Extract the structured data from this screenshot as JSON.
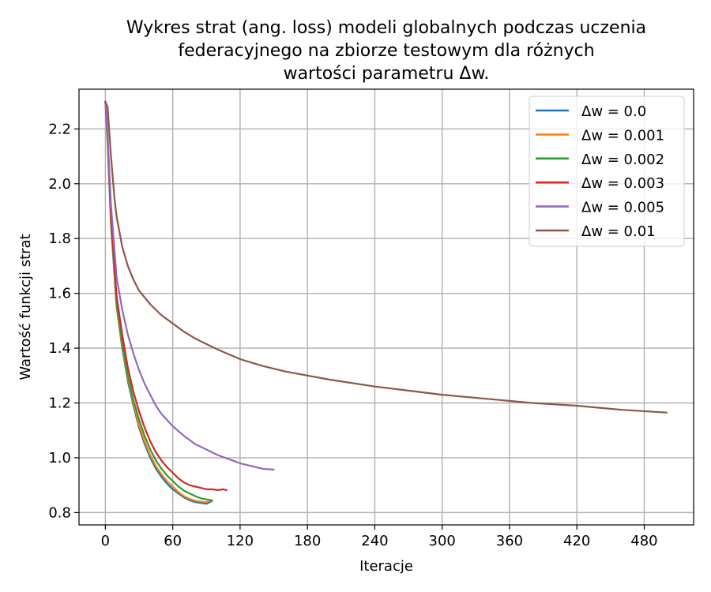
{
  "chart_data": {
    "type": "line",
    "title_lines": [
      "Wykres strat (ang. loss) modeli globalnych podczas uczenia",
      "federacyjnego na zbiorze testowym dla różnych",
      "wartości parametru Δw."
    ],
    "xlabel": "Iteracje",
    "ylabel": "Wartość funkcji strat",
    "xlim": [
      -23.5,
      524
    ],
    "ylim": [
      0.755,
      2.345
    ],
    "xticks": [
      0,
      60,
      120,
      180,
      240,
      300,
      360,
      420,
      480
    ],
    "yticks": [
      0.8,
      1.0,
      1.2,
      1.4,
      1.6,
      1.8,
      2.0,
      2.2
    ],
    "grid": true,
    "legend_position": "top-right",
    "series": [
      {
        "name": "Δw = 0.0",
        "color": "#1f77b4",
        "x": [
          0,
          2,
          5,
          10,
          15,
          20,
          25,
          30,
          35,
          40,
          45,
          50,
          55,
          60,
          65,
          70,
          75,
          80,
          85,
          90,
          95
        ],
        "y": [
          2.3,
          2.15,
          1.85,
          1.55,
          1.4,
          1.28,
          1.19,
          1.11,
          1.05,
          1.0,
          0.96,
          0.93,
          0.905,
          0.885,
          0.87,
          0.855,
          0.845,
          0.838,
          0.835,
          0.832,
          0.842
        ]
      },
      {
        "name": "Δw = 0.001",
        "color": "#ff7f0e",
        "x": [
          0,
          2,
          5,
          10,
          15,
          20,
          25,
          30,
          35,
          40,
          45,
          50,
          55,
          60,
          65,
          70,
          75,
          80,
          85,
          90,
          95
        ],
        "y": [
          2.3,
          2.16,
          1.86,
          1.56,
          1.41,
          1.29,
          1.2,
          1.12,
          1.06,
          1.01,
          0.97,
          0.94,
          0.915,
          0.895,
          0.875,
          0.86,
          0.85,
          0.843,
          0.84,
          0.838,
          0.845
        ]
      },
      {
        "name": "Δw = 0.002",
        "color": "#2ca02c",
        "x": [
          0,
          2,
          5,
          10,
          15,
          20,
          25,
          30,
          35,
          40,
          45,
          50,
          55,
          60,
          65,
          70,
          75,
          80,
          85,
          90,
          95
        ],
        "y": [
          2.3,
          2.16,
          1.87,
          1.57,
          1.42,
          1.3,
          1.21,
          1.14,
          1.08,
          1.03,
          0.99,
          0.96,
          0.935,
          0.915,
          0.895,
          0.88,
          0.87,
          0.86,
          0.852,
          0.848,
          0.845
        ]
      },
      {
        "name": "Δw = 0.003",
        "color": "#d62728",
        "x": [
          0,
          2,
          5,
          10,
          15,
          20,
          25,
          30,
          35,
          40,
          45,
          50,
          55,
          60,
          65,
          70,
          75,
          80,
          85,
          90,
          95,
          100,
          105,
          108
        ],
        "y": [
          2.3,
          2.17,
          1.88,
          1.59,
          1.45,
          1.33,
          1.24,
          1.17,
          1.11,
          1.06,
          1.02,
          0.99,
          0.965,
          0.945,
          0.925,
          0.91,
          0.9,
          0.895,
          0.89,
          0.885,
          0.885,
          0.882,
          0.885,
          0.882
        ]
      },
      {
        "name": "Δw = 0.005",
        "color": "#9467bd",
        "x": [
          0,
          2,
          5,
          10,
          15,
          20,
          25,
          30,
          35,
          40,
          45,
          50,
          60,
          70,
          80,
          90,
          100,
          110,
          120,
          130,
          140,
          145,
          150
        ],
        "y": [
          2.3,
          2.18,
          1.92,
          1.66,
          1.54,
          1.45,
          1.38,
          1.32,
          1.27,
          1.23,
          1.19,
          1.16,
          1.115,
          1.08,
          1.05,
          1.03,
          1.01,
          0.995,
          0.98,
          0.97,
          0.96,
          0.958,
          0.957
        ]
      },
      {
        "name": "Δw = 0.01",
        "color": "#8c564b",
        "x": [
          0,
          2,
          5,
          8,
          10,
          15,
          20,
          25,
          30,
          40,
          50,
          60,
          70,
          80,
          90,
          100,
          120,
          140,
          160,
          180,
          200,
          240,
          280,
          300,
          340,
          380,
          420,
          460,
          500
        ],
        "y": [
          2.3,
          2.28,
          2.1,
          1.95,
          1.88,
          1.77,
          1.7,
          1.65,
          1.61,
          1.56,
          1.52,
          1.49,
          1.46,
          1.435,
          1.415,
          1.395,
          1.36,
          1.335,
          1.315,
          1.3,
          1.285,
          1.26,
          1.24,
          1.23,
          1.215,
          1.2,
          1.19,
          1.175,
          1.165
        ]
      }
    ]
  }
}
